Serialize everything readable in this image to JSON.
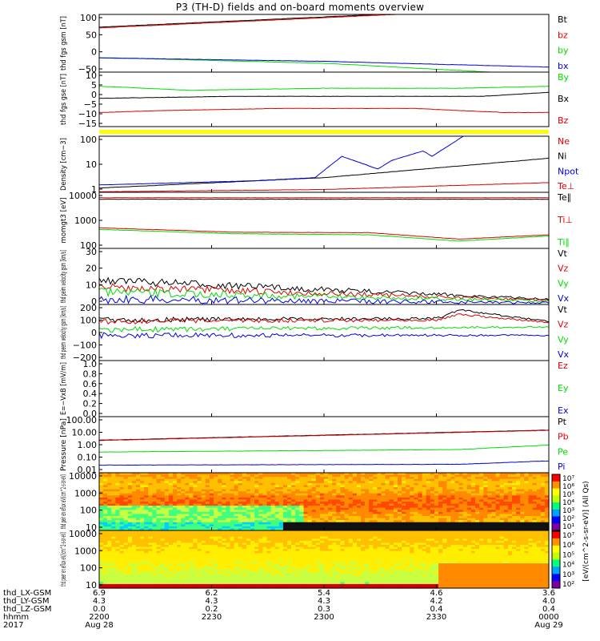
{
  "title": "P3 (TH-D) fields and on-board moments overview",
  "time_axis": {
    "ticks": [
      "2200",
      "2230",
      "2300",
      "2330",
      "0000"
    ],
    "dates": [
      "Aug 28",
      "Aug 29"
    ],
    "row_labels": [
      "thd_LX-GSM",
      "thd_LY-GSM",
      "thd_LZ-GSM",
      "hhmm",
      "2017"
    ],
    "lx": [
      "6.9",
      "6.2",
      "5.4",
      "4.6",
      "3.6"
    ],
    "ly": [
      "4.3",
      "4.3",
      "4.3",
      "4.2",
      "4.0"
    ],
    "lz": [
      "0.0",
      "0.2",
      "0.3",
      "0.4",
      "0.4"
    ]
  },
  "colorbar_label": "[eV/(cm^2-s-sr-eV)] (All Qs)",
  "colors": {
    "black": "#000000",
    "red": "#dd0000",
    "green": "#00dd00",
    "blue": "#0000dd",
    "yellow": "#ffff00"
  },
  "chart_data": [
    {
      "type": "line",
      "ylabel": "thd fgs gsm [nT]",
      "ylim": [
        -50,
        100
      ],
      "ticks": [
        "100",
        "50",
        "0",
        "−50"
      ],
      "legend": [
        "Bt",
        "bz",
        "by",
        "bx"
      ],
      "series": [
        {
          "name": "Bt",
          "x": [
            0,
            1
          ],
          "y": [
            67,
            120
          ]
        },
        {
          "name": "bz",
          "x": [
            0,
            1
          ],
          "y": [
            65,
            118
          ]
        },
        {
          "name": "by",
          "x": [
            0,
            0.5,
            1
          ],
          "y": [
            -12,
            -27,
            -58
          ]
        },
        {
          "name": "bx",
          "x": [
            0,
            0.5,
            1
          ],
          "y": [
            -13,
            -22,
            -37
          ]
        }
      ]
    },
    {
      "type": "line",
      "ylabel": "thd fgs gse [nT]",
      "ylim": [
        -17,
        10
      ],
      "ticks": [
        "10",
        "5",
        "0",
        "−5",
        "−10",
        "−15"
      ],
      "legend": [
        "By",
        "Bx",
        "Bz"
      ],
      "series": [
        {
          "name": "By",
          "x": [
            0,
            0.2,
            0.5,
            0.8,
            1
          ],
          "y": [
            3,
            1,
            2,
            2,
            3
          ]
        },
        {
          "name": "Bx",
          "x": [
            0,
            0.3,
            0.6,
            0.85,
            1
          ],
          "y": [
            -3,
            -2,
            -2,
            -2,
            0
          ]
        },
        {
          "name": "Bz",
          "x": [
            0,
            0.15,
            0.4,
            0.7,
            0.9,
            1
          ],
          "y": [
            -10,
            -9,
            -8,
            -8,
            -10,
            -10
          ]
        }
      ]
    },
    {
      "type": "line",
      "ylabel": "Density [cm−3]",
      "log": true,
      "ylim": [
        1,
        200
      ],
      "ticks": [
        "100",
        "10",
        "1"
      ],
      "legend": [
        "Ne",
        "Ni",
        "Npot",
        "Te⊥"
      ],
      "series": [
        {
          "name": "Ne",
          "x": [
            0,
            0.5,
            1
          ],
          "y": [
            1.05,
            1.3,
            2.5
          ]
        },
        {
          "name": "Ni",
          "x": [
            0,
            0.5,
            1
          ],
          "y": [
            1.5,
            4,
            25
          ]
        },
        {
          "name": "Npot",
          "x": [
            0,
            0.35,
            0.48,
            0.54,
            0.62,
            0.65,
            0.72,
            0.74,
            0.81
          ],
          "y": [
            2,
            3,
            4,
            30,
            9,
            20,
            50,
            30,
            200
          ]
        }
      ]
    },
    {
      "type": "line",
      "ylabel": "momgt3 [eV]",
      "log": true,
      "ylim": [
        50,
        10000
      ],
      "ticks": [
        "10000",
        "1000",
        "100"
      ],
      "legend": [
        "Te∥",
        "Ti⊥",
        "Ti∥"
      ],
      "series": [
        {
          "name": "Te⊥",
          "x": [
            0,
            1
          ],
          "y": [
            6000,
            6000
          ]
        },
        {
          "name": "Te∥",
          "x": [
            0,
            1
          ],
          "y": [
            5200,
            5200
          ]
        },
        {
          "name": "Ti⊥",
          "x": [
            0,
            0.3,
            0.6,
            0.8,
            1
          ],
          "y": [
            350,
            230,
            220,
            120,
            180
          ]
        },
        {
          "name": "Ti∥",
          "x": [
            0,
            0.3,
            0.6,
            0.8,
            1
          ],
          "y": [
            300,
            200,
            180,
            100,
            160
          ]
        }
      ]
    },
    {
      "type": "line",
      "ylabel": "thd peim velocity gsm [km/s]",
      "ylim": [
        -2,
        30
      ],
      "ticks": [
        "30",
        "20",
        "10",
        "0"
      ],
      "legend": [
        "Vt",
        "Vz",
        "Vy",
        "Vx"
      ],
      "series": [
        {
          "name": "Vt",
          "x": [
            0,
            1
          ],
          "y": [
            12,
            1
          ]
        },
        {
          "name": "Vz",
          "x": [
            0,
            1
          ],
          "y": [
            8,
            0.5
          ]
        },
        {
          "name": "Vy",
          "x": [
            0,
            1
          ],
          "y": [
            5,
            0
          ]
        },
        {
          "name": "Vx",
          "x": [
            0,
            1
          ],
          "y": [
            1,
            -1
          ]
        }
      ]
    },
    {
      "type": "line",
      "ylabel": "thd peem velocity gsm [km/s]",
      "ylim": [
        -200,
        200
      ],
      "ticks": [
        "200",
        "100",
        "0",
        "−100",
        "−200"
      ],
      "legend": [
        "Vt",
        "Vz",
        "Vy",
        "Vx"
      ],
      "series": [
        {
          "name": "Vt",
          "x": [
            0,
            0.75,
            0.8,
            1
          ],
          "y": [
            90,
            100,
            160,
            80
          ]
        },
        {
          "name": "Vz",
          "x": [
            0,
            0.75,
            0.8,
            1
          ],
          "y": [
            80,
            90,
            130,
            70
          ]
        },
        {
          "name": "Vy",
          "x": [
            0,
            1
          ],
          "y": [
            20,
            40
          ]
        },
        {
          "name": "Vx",
          "x": [
            0,
            1
          ],
          "y": [
            -20,
            -20
          ]
        }
      ]
    },
    {
      "type": "line",
      "ylabel": "E=−VxB [mV/m]",
      "ylim": [
        0,
        1
      ],
      "ticks": [
        "1.0",
        "0.8",
        "0.6",
        "0.4",
        "0.2",
        "0.0"
      ],
      "legend": [
        "Ez",
        "Ey",
        "Ex"
      ],
      "series": []
    },
    {
      "type": "line",
      "ylabel": "Pressure [nPa]",
      "log": true,
      "ylim": [
        0.01,
        100
      ],
      "ticks": [
        "100.00",
        "10.00",
        "1.00",
        "0.10",
        "0.01"
      ],
      "legend": [
        "Pt",
        "Pb",
        "Pe",
        "Pi"
      ],
      "series": [
        {
          "name": "Pt",
          "x": [
            0,
            1
          ],
          "y": [
            2.1,
            11
          ]
        },
        {
          "name": "Pb",
          "x": [
            0,
            1
          ],
          "y": [
            2,
            10.5
          ]
        },
        {
          "name": "Pe",
          "x": [
            0,
            0.8,
            1
          ],
          "y": [
            0.3,
            0.45,
            0.95
          ]
        },
        {
          "name": "Pi",
          "x": [
            0,
            0.8,
            1
          ],
          "y": [
            0.035,
            0.04,
            0.07
          ]
        }
      ]
    },
    {
      "type": "heatmap",
      "ylabel": "thd peir en eflux eV/(cm^2-s-sr-eV)",
      "log": true,
      "ylim": [
        5,
        20000
      ],
      "ticks": [
        "10000",
        "1000",
        "100",
        "10"
      ]
    },
    {
      "type": "heatmap",
      "ylabel": "thd peer en eflux eV/(cm^2-s-sr-eV)",
      "log": true,
      "ylim": [
        5,
        20000
      ],
      "ticks": [
        "10000",
        "1000",
        "100",
        "10"
      ]
    }
  ],
  "colorbars": [
    {
      "ticks": [
        "10⁷",
        "10⁶",
        "10⁵",
        "10⁴",
        "10³",
        "10²",
        "10¹"
      ]
    },
    {
      "ticks": [
        "10⁷",
        "10⁶",
        "10⁵",
        "10⁴",
        "10³",
        "10²"
      ]
    }
  ]
}
